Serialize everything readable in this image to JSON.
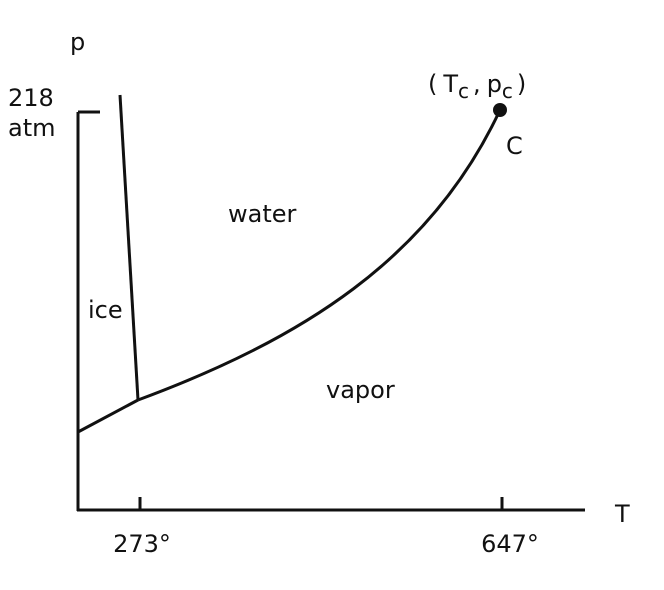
{
  "axes": {
    "y_label": "p",
    "x_label": "T",
    "y_tick": {
      "value": "218",
      "unit": "atm"
    },
    "x_ticks": [
      "273°",
      "647°"
    ]
  },
  "critical_point": {
    "open": "(",
    "t": "T",
    "t_sub": "c",
    "sep": ",",
    "p": "p",
    "p_sub": "c",
    "close": ")",
    "label": "C"
  },
  "regions": {
    "water": "water",
    "ice": "ice",
    "vapor": "vapor"
  }
}
